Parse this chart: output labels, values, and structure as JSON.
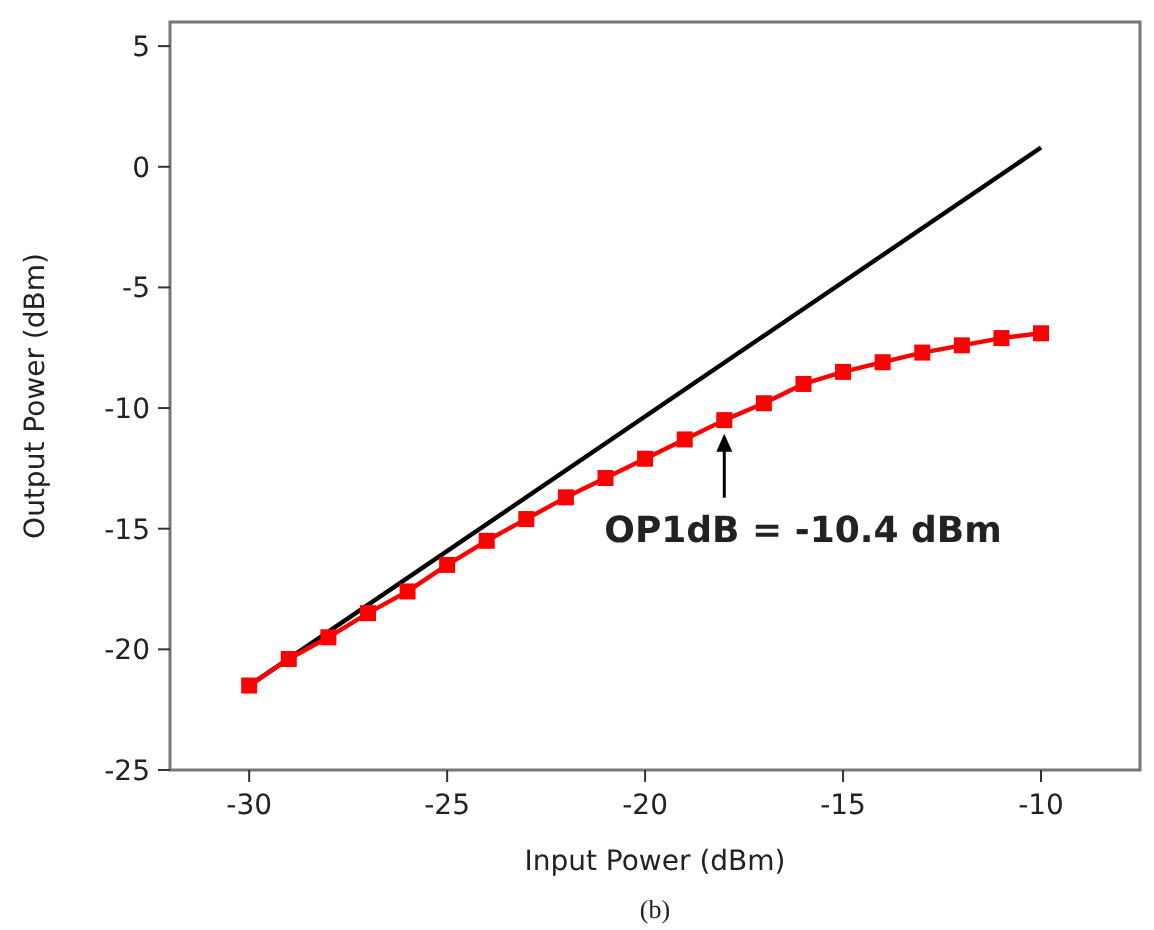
{
  "chart_data": {
    "type": "line",
    "xlabel": "Input Power (dBm)",
    "ylabel": "Output Power (dBm)",
    "xlim": [
      -32,
      -7.5
    ],
    "ylim": [
      -25,
      6
    ],
    "xticks": [
      -30,
      -25,
      -20,
      -15,
      -10
    ],
    "yticks": [
      -25,
      -20,
      -15,
      -10,
      -5,
      0,
      5
    ],
    "grid": false,
    "series": [
      {
        "color": "#000000",
        "marker": "none",
        "x": [
          -30,
          -10
        ],
        "values": [
          -21.5,
          0.8
        ]
      },
      {
        "color": "#ff0000",
        "marker": "square",
        "x": [
          -30,
          -29,
          -28,
          -27,
          -26,
          -25,
          -24,
          -23,
          -22,
          -21,
          -20,
          -19,
          -18,
          -17,
          -16,
          -15,
          -14,
          -13,
          -12,
          -11,
          -10
        ],
        "values": [
          -21.5,
          -20.4,
          -19.5,
          -18.5,
          -17.6,
          -16.5,
          -15.5,
          -14.6,
          -13.7,
          -12.9,
          -12.1,
          -11.3,
          -10.5,
          -9.8,
          -9.0,
          -8.5,
          -8.1,
          -7.7,
          -7.4,
          -7.1,
          -6.9
        ]
      }
    ],
    "annotations": [
      {
        "text": "OP1dB = -10.4 dBm",
        "x": -18,
        "y": -10.4
      },
      "(b)"
    ]
  }
}
